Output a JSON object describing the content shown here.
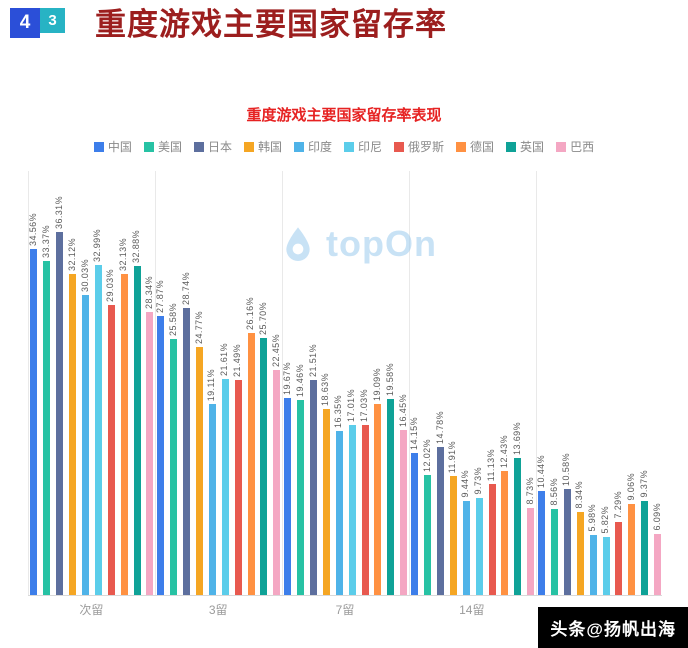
{
  "header": {
    "badge_primary": "4",
    "badge_secondary": "3",
    "title": "重度游戏主要国家留存率"
  },
  "watermark": {
    "text": "topOn"
  },
  "footer": {
    "badge": "头条@扬帆出海"
  },
  "chart_data": {
    "type": "bar",
    "title": "重度游戏主要国家留存率表现",
    "value_suffix": "%",
    "ylim": [
      0,
      40
    ],
    "grid": "vertical-separators-between-groups",
    "legend_position": "top",
    "categories": [
      "次留",
      "3留",
      "7留",
      "14留",
      ""
    ],
    "series": [
      {
        "name": "中国",
        "color": "#3D7EEA",
        "values": [
          34.56,
          27.87,
          19.67,
          14.15,
          10.44
        ]
      },
      {
        "name": "美国",
        "color": "#27C2A4",
        "values": [
          33.37,
          25.58,
          19.46,
          12.02,
          8.56
        ]
      },
      {
        "name": "日本",
        "color": "#5D6F9E",
        "values": [
          36.31,
          28.74,
          21.51,
          14.78,
          10.58
        ]
      },
      {
        "name": "韩国",
        "color": "#F5A623",
        "values": [
          32.12,
          24.77,
          18.63,
          11.91,
          8.34
        ]
      },
      {
        "name": "印度",
        "color": "#4FB3E8",
        "values": [
          30.03,
          19.11,
          16.35,
          9.44,
          5.98
        ]
      },
      {
        "name": "印尼",
        "color": "#5BCDEA",
        "values": [
          32.99,
          21.61,
          17.01,
          9.73,
          5.82
        ]
      },
      {
        "name": "俄罗斯",
        "color": "#E8594F",
        "values": [
          29.03,
          21.49,
          17.03,
          11.13,
          7.29
        ]
      },
      {
        "name": "德国",
        "color": "#FF9142",
        "values": [
          32.13,
          26.16,
          19.09,
          12.43,
          9.06
        ]
      },
      {
        "name": "英国",
        "color": "#0FA297",
        "values": [
          32.88,
          25.7,
          19.58,
          13.69,
          9.37
        ]
      },
      {
        "name": "巴西",
        "color": "#F4A7C3",
        "values": [
          28.34,
          22.45,
          16.45,
          8.73,
          6.09
        ]
      }
    ]
  }
}
